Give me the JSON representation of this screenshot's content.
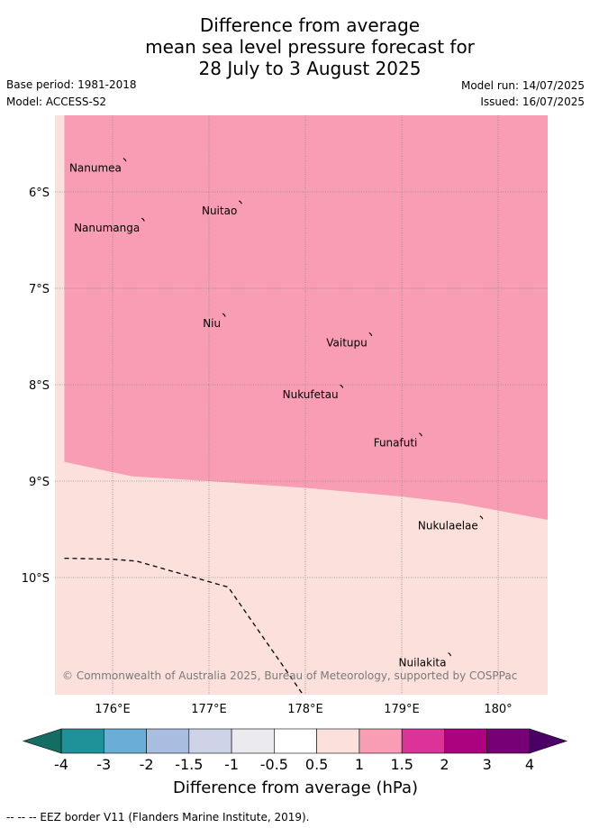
{
  "title": {
    "line1": "Difference from average",
    "line2": "mean sea level pressure forecast for",
    "line3": "28 July to 3 August 2025"
  },
  "meta": {
    "base_period": "Base period: 1981-2018",
    "model": "Model: ACCESS-S2",
    "model_run": "Model run: 14/07/2025",
    "issued": "Issued: 16/07/2025"
  },
  "map": {
    "lon_range": [
      175.5,
      180.5
    ],
    "lat_range": [
      -11.2,
      -5.2
    ],
    "lat_ticks": [
      {
        "value": -6,
        "label": "6°S"
      },
      {
        "value": -7,
        "label": "7°S"
      },
      {
        "value": -8,
        "label": "8°S"
      },
      {
        "value": -9,
        "label": "9°S"
      },
      {
        "value": -10,
        "label": "10°S"
      }
    ],
    "lon_ticks": [
      {
        "value": 176,
        "label": "176°E"
      },
      {
        "value": 177,
        "label": "177°E"
      },
      {
        "value": 178,
        "label": "178°E"
      },
      {
        "value": 179,
        "label": "179°E"
      },
      {
        "value": 180,
        "label": "180°"
      }
    ],
    "grid": true,
    "regions": [
      {
        "name": "1 to 1.5 hPa",
        "color": "#f89db4",
        "area": "north"
      },
      {
        "name": "0.5 to 1 hPa",
        "color": "#fce0dc",
        "area": "south"
      }
    ],
    "boundary_1hPa": [
      [
        175.5,
        -8.8
      ],
      [
        176.2,
        -8.95
      ],
      [
        177.0,
        -9.0
      ],
      [
        178.0,
        -9.07
      ],
      [
        179.0,
        -9.16
      ],
      [
        179.6,
        -9.23
      ],
      [
        180.5,
        -9.4
      ]
    ],
    "eez_border": [
      [
        175.5,
        -9.8
      ],
      [
        176.0,
        -9.81
      ],
      [
        176.25,
        -9.83
      ],
      [
        177.2,
        -10.1
      ],
      [
        178.0,
        -11.25
      ]
    ],
    "islands": [
      {
        "name": "Nanumea",
        "lon": 176.13,
        "lat": -5.67
      },
      {
        "name": "Nuitao",
        "lon": 177.33,
        "lat": -6.11
      },
      {
        "name": "Nanumanga",
        "lon": 176.32,
        "lat": -6.29
      },
      {
        "name": "Niu",
        "lon": 177.16,
        "lat": -7.28
      },
      {
        "name": "Vaitupu",
        "lon": 178.68,
        "lat": -7.48
      },
      {
        "name": "Nukufetau",
        "lon": 178.38,
        "lat": -8.02
      },
      {
        "name": "Funafuti",
        "lon": 179.2,
        "lat": -8.52
      },
      {
        "name": "Nukulaelae",
        "lon": 179.83,
        "lat": -9.38
      },
      {
        "name": "Nuilakita",
        "lon": 179.5,
        "lat": -10.8
      }
    ],
    "copyright": "© Commonwealth of Australia 2025, Bureau of Meteorology, supported by COSPPac"
  },
  "colorbar": {
    "label": "Difference from average (hPa)",
    "tick_labels": [
      "-4",
      "-3",
      "-2",
      "-1.5",
      "-1",
      "-0.5",
      "0.5",
      "1",
      "1.5",
      "2",
      "3",
      "4"
    ],
    "under_color": "#136d64",
    "over_color": "#4b0066",
    "colors": [
      "#1f9199",
      "#6aadd5",
      "#a9bde0",
      "#cfd3e8",
      "#ebeaef",
      "#ffffff",
      "#fce0dc",
      "#f89db4",
      "#dc3399",
      "#ac0280",
      "#780077"
    ]
  },
  "footer": "--  --  -- EEZ border V11 (Flanders Marine Institute, 2019)."
}
